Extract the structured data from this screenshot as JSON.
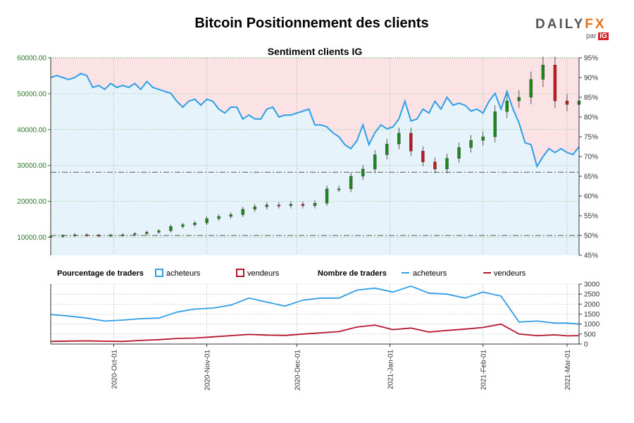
{
  "header": {
    "title": "Bitcoin Positionnement des clients",
    "logo_main": "DAILY",
    "logo_fx": "FX",
    "logo_par": "par",
    "logo_ig": "IG"
  },
  "colors": {
    "buyers": "#2e9ee6",
    "sellers": "#b5142b",
    "buyers_fill": "#e6f3fa",
    "sellers_fill": "#fbe2e4",
    "price_axis": "#2a7a2a",
    "candle_up": "#1a8a1a",
    "candle_down": "#c4161c"
  },
  "chart_data": [
    {
      "type": "line",
      "title": "Sentiment clients IG",
      "left_axis": {
        "ylim": [
          5000,
          60000
        ],
        "ticks": [
          "10000.00",
          "20000.00",
          "30000.00",
          "40000.00",
          "50000.00",
          "60000.00"
        ]
      },
      "right_axis": {
        "ylim": [
          45,
          95
        ],
        "ticks": [
          "45%",
          "50%",
          "55%",
          "60%",
          "65%",
          "70%",
          "75%",
          "80%",
          "85%",
          "90%",
          "95%"
        ]
      },
      "x_range": [
        "2020-09-10",
        "2021-03-05"
      ],
      "x_ticks": [
        "2020-Oct-01",
        "2020-Nov-01",
        "2020-Dec-01",
        "2021-Jan-01",
        "2021-Feb-01",
        "2021-Mar-01"
      ],
      "series": [
        {
          "name": "acheteurs",
          "kind": "percent_long",
          "days": [
            0,
            2,
            4,
            6,
            8,
            10,
            12,
            14,
            16,
            18,
            20,
            22,
            24,
            26,
            28,
            30,
            32,
            34,
            36,
            38,
            40,
            42,
            44,
            46,
            48,
            50,
            52,
            54,
            56,
            58,
            60,
            62,
            64,
            66,
            68,
            70,
            72,
            74,
            76,
            78,
            80,
            82,
            84,
            86,
            88,
            90,
            92,
            94,
            96,
            98,
            100,
            102,
            104,
            106,
            108,
            110,
            112,
            114,
            116,
            118,
            120,
            122,
            124,
            126,
            128,
            130,
            132,
            134,
            136,
            138,
            140,
            142,
            144,
            146,
            148,
            150,
            152,
            154,
            156,
            158,
            160,
            162,
            164,
            166,
            168,
            170,
            172,
            174,
            176
          ],
          "values": [
            90,
            90.5,
            90,
            89.5,
            90,
            91,
            90.5,
            87.5,
            88,
            87,
            88.5,
            87.5,
            88,
            87.5,
            88.5,
            87,
            89,
            87.5,
            87,
            86.5,
            86,
            84,
            82.5,
            84,
            84.5,
            83,
            84.5,
            84,
            82,
            81,
            82.5,
            82.5,
            79.5,
            80.5,
            79.5,
            79.5,
            82,
            82.5,
            80,
            80.5,
            80.5,
            81,
            81.5,
            82,
            78,
            78,
            77.5,
            76,
            75,
            73,
            72,
            74,
            78,
            73,
            76,
            78,
            77,
            77.5,
            79.5,
            84,
            79,
            79.5,
            82,
            81,
            84,
            82,
            85,
            83,
            83.5,
            83,
            81.5,
            82,
            81,
            84,
            86,
            82,
            86.5,
            82,
            78.5,
            73.5,
            73,
            67.5,
            70,
            72,
            71,
            72,
            71,
            70.5,
            72.5
          ]
        },
        {
          "name": "price",
          "kind": "candles_close",
          "days": [
            0,
            4,
            8,
            12,
            16,
            20,
            24,
            28,
            32,
            36,
            40,
            44,
            48,
            52,
            56,
            60,
            64,
            68,
            72,
            76,
            80,
            84,
            88,
            92,
            96,
            100,
            104,
            108,
            112,
            116,
            120,
            124,
            128,
            132,
            136,
            140,
            144,
            148,
            152,
            156,
            160,
            164,
            168,
            172,
            176
          ],
          "values": [
            10300,
            10500,
            10700,
            10600,
            10500,
            10600,
            10700,
            11000,
            11400,
            11800,
            13000,
            13500,
            14000,
            15200,
            15800,
            16300,
            17800,
            18500,
            19000,
            18800,
            19200,
            18800,
            19500,
            23500,
            23500,
            27000,
            29000,
            33000,
            36000,
            39000,
            34000,
            31000,
            29000,
            32000,
            35000,
            37000,
            38000,
            45000,
            48000,
            49000,
            54000,
            58000,
            48000,
            47000,
            48000
          ]
        }
      ],
      "horizontal_refs": [
        {
          "axis": "right",
          "value": 50
        },
        {
          "axis": "right",
          "value": 66
        }
      ]
    },
    {
      "type": "line",
      "title": "Nombre de traders",
      "ylim": [
        0,
        3000
      ],
      "y_ticks": [
        "0",
        "500",
        "1000",
        "1500",
        "2000",
        "2500",
        "3000"
      ],
      "legend": {
        "pct_label": "Pourcentage de traders",
        "count_label": "Nombre de traders",
        "acheteurs": "acheteurs",
        "vendeurs": "vendeurs"
      },
      "series": [
        {
          "name": "acheteurs",
          "days": [
            0,
            6,
            12,
            18,
            24,
            30,
            36,
            42,
            48,
            54,
            60,
            66,
            72,
            78,
            84,
            90,
            96,
            102,
            108,
            114,
            120,
            126,
            132,
            138,
            144,
            150,
            156,
            162,
            168,
            172,
            176
          ],
          "values": [
            1480,
            1400,
            1300,
            1150,
            1200,
            1270,
            1300,
            1600,
            1750,
            1800,
            1950,
            2300,
            2100,
            1900,
            2200,
            2300,
            2300,
            2700,
            2800,
            2600,
            2900,
            2550,
            2500,
            2300,
            2600,
            2400,
            1100,
            1150,
            1050,
            1050,
            1000
          ]
        },
        {
          "name": "vendeurs",
          "days": [
            0,
            6,
            12,
            18,
            24,
            30,
            36,
            42,
            48,
            54,
            60,
            66,
            72,
            78,
            84,
            90,
            96,
            102,
            108,
            114,
            120,
            126,
            132,
            138,
            144,
            150,
            156,
            162,
            168,
            172,
            176
          ],
          "values": [
            130,
            150,
            160,
            140,
            130,
            180,
            220,
            280,
            300,
            360,
            420,
            480,
            450,
            430,
            500,
            560,
            620,
            850,
            950,
            720,
            800,
            600,
            680,
            750,
            830,
            1000,
            500,
            420,
            460,
            410,
            420
          ]
        }
      ]
    }
  ]
}
